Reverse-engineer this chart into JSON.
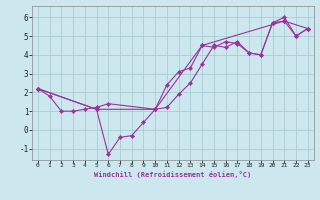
{
  "xlabel": "Windchill (Refroidissement éolien,°C)",
  "background_color": "#cce8ee",
  "grid_color": "#aaccd4",
  "line_color": "#993399",
  "xlim": [
    -0.5,
    23.5
  ],
  "ylim": [
    -1.6,
    6.6
  ],
  "xticks": [
    0,
    1,
    2,
    3,
    4,
    5,
    6,
    7,
    8,
    9,
    10,
    11,
    12,
    13,
    14,
    15,
    16,
    17,
    18,
    19,
    20,
    21,
    22,
    23
  ],
  "yticks": [
    -1,
    0,
    1,
    2,
    3,
    4,
    5,
    6
  ],
  "series": [
    [
      2.2,
      1.8,
      1.0,
      1.0,
      1.1,
      1.2,
      1.4,
      null,
      null,
      null,
      1.1,
      1.2,
      1.9,
      2.5,
      3.5,
      4.5,
      4.4,
      4.7,
      4.1,
      4.0,
      5.7,
      6.0,
      5.0,
      5.4
    ],
    [
      2.2,
      null,
      null,
      null,
      null,
      1.1,
      -1.3,
      -0.4,
      -0.3,
      0.4,
      1.1,
      2.4,
      3.1,
      3.3,
      4.5,
      4.4,
      4.7,
      4.6,
      4.1,
      4.0,
      5.7,
      5.8,
      5.0,
      5.4
    ],
    [
      2.2,
      null,
      null,
      null,
      null,
      1.1,
      null,
      null,
      null,
      null,
      1.1,
      null,
      null,
      null,
      4.5,
      null,
      null,
      null,
      null,
      null,
      null,
      5.8,
      null,
      5.4
    ]
  ]
}
